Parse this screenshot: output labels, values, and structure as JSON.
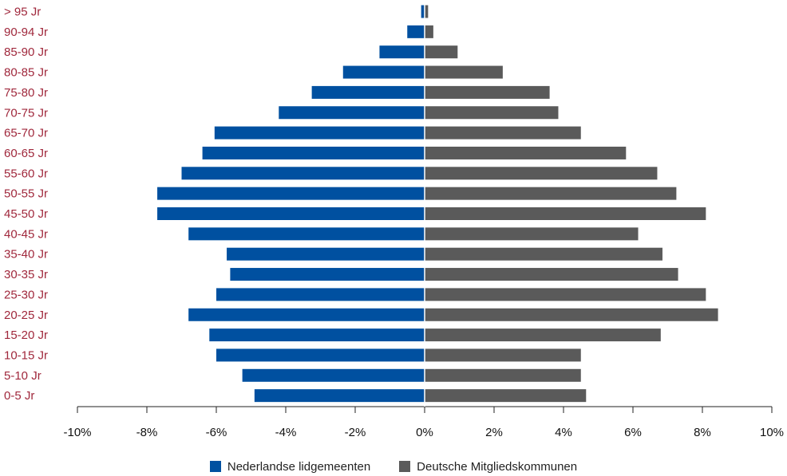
{
  "chart_data": {
    "type": "bar",
    "orientation": "horizontal-pyramid",
    "categories": [
      "> 95 Jr",
      "90-94 Jr",
      "85-90 Jr",
      "80-85 Jr",
      "75-80 Jr",
      "70-75 Jr",
      "65-70 Jr",
      "60-65 Jr",
      "55-60 Jr",
      "50-55 Jr",
      "45-50 Jr",
      "40-45 Jr",
      "35-40 Jr",
      "30-35 Jr",
      "25-30 Jr",
      "20-25 Jr",
      "15-20 Jr",
      "10-15 Jr",
      "5-10 Jr",
      "0-5 Jr"
    ],
    "series": [
      {
        "name": "Nederlandse lidgemeenten",
        "color": "#0050a0",
        "values": [
          -0.1,
          -0.5,
          -1.3,
          -2.35,
          -3.25,
          -4.2,
          -6.05,
          -6.4,
          -7.0,
          -7.7,
          -7.7,
          -6.8,
          -5.7,
          -5.6,
          -6.0,
          -6.8,
          -6.2,
          -6.0,
          -5.25,
          -4.9
        ]
      },
      {
        "name": "Deutsche Mitgliedskommunen",
        "color": "#5a5a5a",
        "values": [
          0.1,
          0.25,
          0.95,
          2.25,
          3.6,
          3.85,
          4.5,
          5.8,
          6.7,
          7.25,
          8.1,
          6.15,
          6.85,
          7.3,
          8.1,
          8.45,
          6.8,
          4.5,
          4.5,
          4.65
        ]
      }
    ],
    "xlim": [
      -10,
      10
    ],
    "xticks": [
      -10,
      -8,
      -6,
      -4,
      -2,
      0,
      2,
      4,
      6,
      8,
      10
    ],
    "xtick_labels": [
      "-10%",
      "-8%",
      "-6%",
      "-4%",
      "-2%",
      "0%",
      "2%",
      "4%",
      "6%",
      "8%",
      "10%"
    ],
    "title": "",
    "xlabel": "",
    "ylabel": "",
    "grid": false,
    "legend_position": "bottom-center",
    "category_label_color": "#a0283c"
  }
}
